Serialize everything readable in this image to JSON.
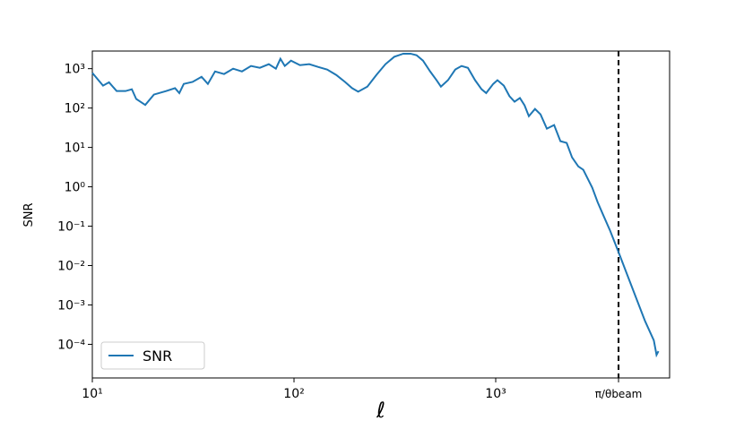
{
  "chart_data": {
    "type": "line",
    "xlabel": "ℓ",
    "ylabel": "SNR",
    "xscale": "log",
    "yscale": "log",
    "xlim": [
      10,
      7280
    ],
    "ylim": [
      1.4e-05,
      2800
    ],
    "xticks": [
      {
        "value": 10,
        "label": "10¹"
      },
      {
        "value": 100,
        "label": "10²"
      },
      {
        "value": 1000,
        "label": "10³"
      },
      {
        "value": 4064,
        "label": "π/θbeam"
      }
    ],
    "yticks": [
      {
        "value": 0.0001,
        "label": "10⁻⁴"
      },
      {
        "value": 0.001,
        "label": "10⁻³"
      },
      {
        "value": 0.01,
        "label": "10⁻²"
      },
      {
        "value": 0.1,
        "label": "10⁻¹"
      },
      {
        "value": 1,
        "label": "10⁰"
      },
      {
        "value": 10,
        "label": "10¹"
      },
      {
        "value": 100,
        "label": "10²"
      },
      {
        "value": 1000,
        "label": "10³"
      }
    ],
    "vline": {
      "x": 4064,
      "color": "#000000",
      "dashed": true
    },
    "legend": "lower left",
    "grid": false,
    "x": [
      10,
      11.3,
      12.1,
      13.2,
      14.6,
      15.7,
      16.5,
      18.3,
      20.2,
      23.2,
      25.7,
      27.0,
      28.4,
      31.4,
      34.8,
      37.4,
      40.6,
      45.0,
      49.9,
      55.2,
      61.2,
      67.7,
      75.0,
      81.3,
      85.6,
      90.0,
      96.6,
      107,
      119,
      132,
      146,
      162,
      179,
      194,
      208,
      231,
      256,
      284,
      314,
      348,
      378,
      405,
      436,
      473,
      509,
      535,
      580,
      630,
      677,
      728,
      790,
      851,
      897,
      972,
      1020,
      1097,
      1170,
      1240,
      1318,
      1390,
      1460,
      1566,
      1668,
      1793,
      1948,
      2093,
      2248,
      2390,
      2567,
      2717,
      2860,
      3010,
      3200,
      3400,
      3690,
      4064,
      4496,
      4970,
      5500,
      6080,
      6270,
      6410
    ],
    "series": [
      {
        "name": "SNR",
        "color": "#1f77b4",
        "values": [
          780,
          370,
          450,
          270,
          270,
          300,
          170,
          120,
          220,
          270,
          320,
          240,
          410,
          460,
          620,
          410,
          850,
          730,
          1000,
          850,
          1170,
          1050,
          1300,
          1000,
          1780,
          1170,
          1600,
          1230,
          1300,
          1100,
          950,
          690,
          460,
          320,
          260,
          350,
          690,
          1300,
          2000,
          2400,
          2400,
          2200,
          1600,
          850,
          510,
          350,
          510,
          950,
          1170,
          1050,
          510,
          300,
          240,
          410,
          510,
          370,
          200,
          145,
          180,
          117,
          62,
          95,
          69,
          30,
          37,
          14.4,
          13,
          5.6,
          3.3,
          2.7,
          1.6,
          0.95,
          0.41,
          0.2,
          0.077,
          0.022,
          0.0057,
          0.0015,
          0.00039,
          0.000126,
          5.4e-05,
          6.7e-05
        ]
      }
    ]
  }
}
